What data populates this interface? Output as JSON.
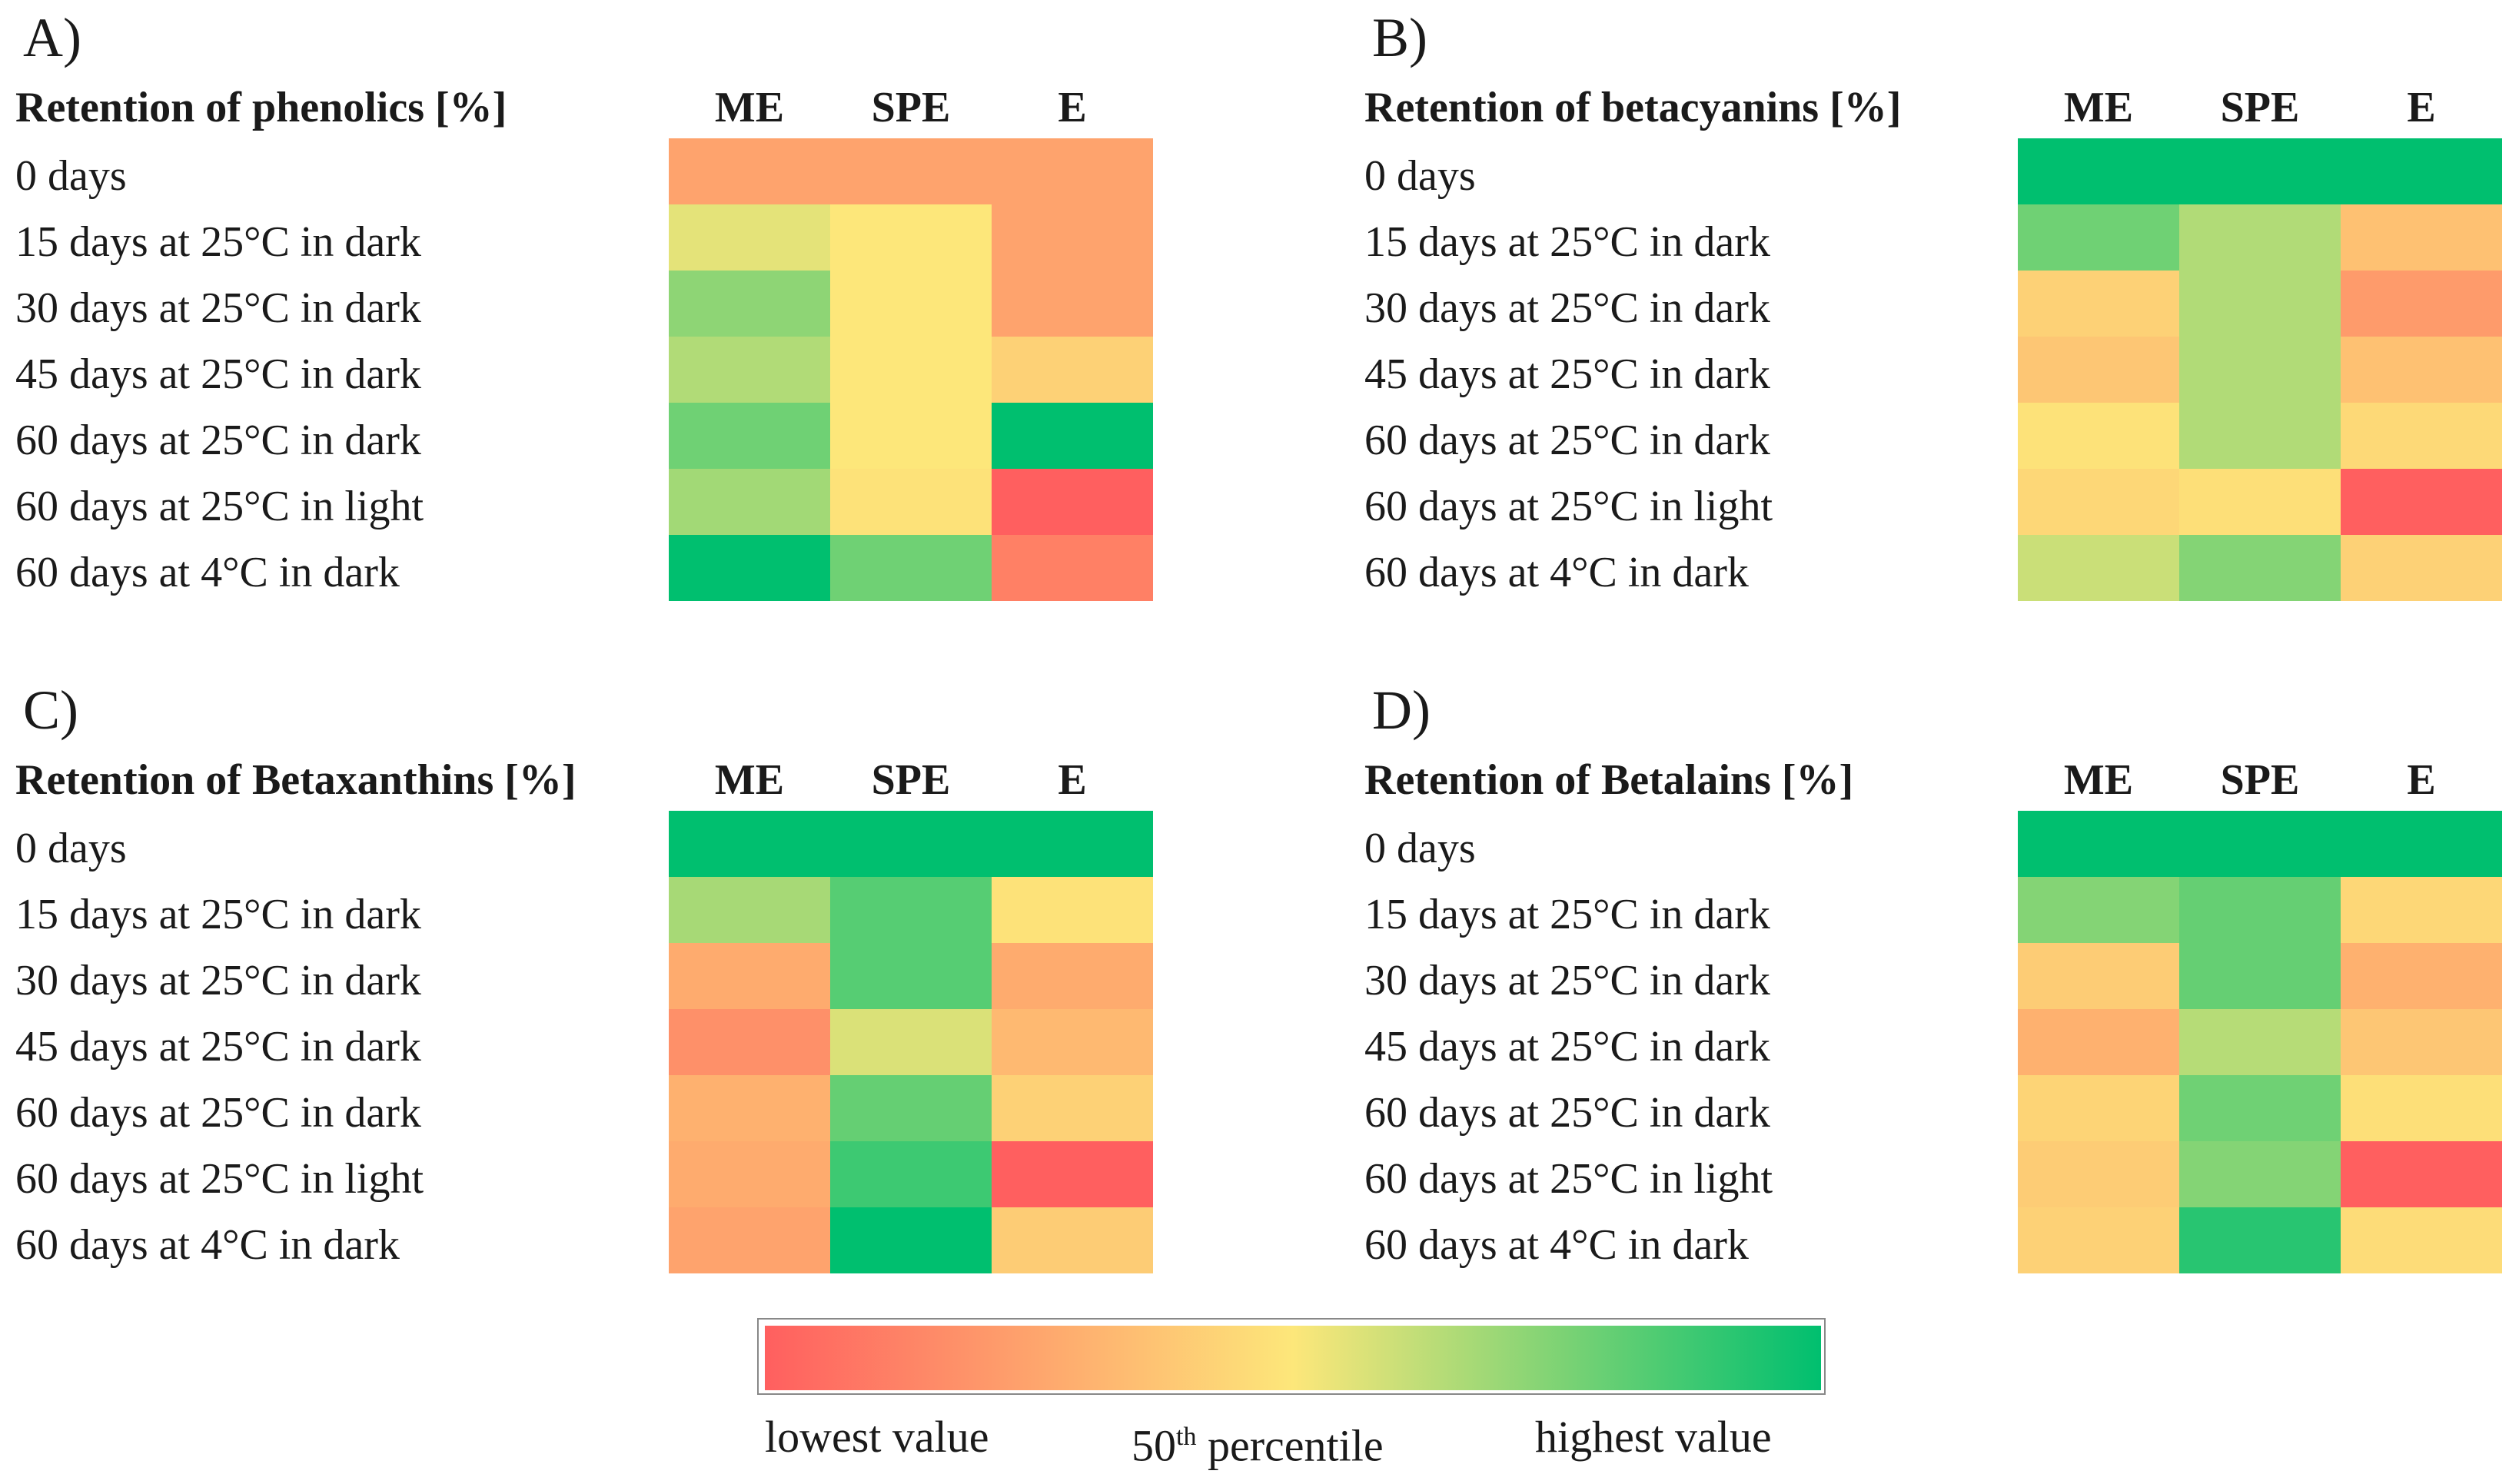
{
  "colors": {
    "low": "#ff5f5f",
    "mid": "#fde77a",
    "high": "#00bf6f"
  },
  "columns": [
    "ME",
    "SPE",
    "E"
  ],
  "row_labels": [
    "0 days",
    "15 days at 25°C in dark",
    "30 days at 25°C in dark",
    "45 days at 25°C in dark",
    "60 days at 25°C in dark",
    "60 days at 25°C in light",
    "60 days at 4°C in dark"
  ],
  "legend": {
    "low_label": "lowest value",
    "mid_label_base": "50",
    "mid_label_sup": "th",
    "mid_label_rest": " percentile",
    "high_label": "highest value"
  },
  "chart_data": [
    {
      "type": "heatmap",
      "panel": "A)",
      "title": "Retention of phenolics [%]",
      "columns": [
        "ME",
        "SPE",
        "E"
      ],
      "rows": [
        "0 days",
        "15 days at 25°C in dark",
        "30 days at 25°C in dark",
        "45 days at 25°C in dark",
        "60 days at 25°C in dark",
        "60 days at 25°C in light",
        "60 days at 4°C in dark"
      ],
      "scale": "relative color (0 = lowest value, 0.5 = 50th percentile, 1 = highest value)",
      "values": [
        [
          0.25,
          0.25,
          0.25
        ],
        [
          0.55,
          0.5,
          0.25
        ],
        [
          0.72,
          0.5,
          0.25
        ],
        [
          0.65,
          0.5,
          0.42
        ],
        [
          0.78,
          0.5,
          1.0
        ],
        [
          0.68,
          0.48,
          0.0
        ],
        [
          1.0,
          0.78,
          0.12
        ]
      ]
    },
    {
      "type": "heatmap",
      "panel": "B)",
      "title": "Retention of betacyanins [%]",
      "columns": [
        "ME",
        "SPE",
        "E"
      ],
      "rows": [
        "0 days",
        "15 days at 25°C in dark",
        "30 days at 25°C in dark",
        "45 days at 25°C in dark",
        "60 days at 25°C in dark",
        "60 days at 25°C in light",
        "60 days at 4°C in dark"
      ],
      "scale": "relative color (0 = lowest value, 0.5 = 50th percentile, 1 = highest value)",
      "values": [
        [
          1.0,
          1.0,
          1.0
        ],
        [
          0.78,
          0.65,
          0.36
        ],
        [
          0.42,
          0.65,
          0.22
        ],
        [
          0.38,
          0.65,
          0.36
        ],
        [
          0.48,
          0.65,
          0.45
        ],
        [
          0.44,
          0.47,
          0.0
        ],
        [
          0.6,
          0.74,
          0.42
        ]
      ]
    },
    {
      "type": "heatmap",
      "panel": "C)",
      "title": "Retention of Betaxanthins [%]",
      "columns": [
        "ME",
        "SPE",
        "E"
      ],
      "rows": [
        "0 days",
        "15 days at 25°C in dark",
        "30 days at 25°C in dark",
        "45 days at 25°C in dark",
        "60 days at 25°C in dark",
        "60 days at 25°C in light",
        "60 days at 4°C in dark"
      ],
      "scale": "relative color (0 = lowest value, 0.5 = 50th percentile, 1 = highest value)",
      "values": [
        [
          1.0,
          1.0,
          1.0
        ],
        [
          0.67,
          0.83,
          0.48
        ],
        [
          0.28,
          0.83,
          0.28
        ],
        [
          0.18,
          0.57,
          0.33
        ],
        [
          0.3,
          0.8,
          0.42
        ],
        [
          0.28,
          0.88,
          0.0
        ],
        [
          0.25,
          1.0,
          0.4
        ]
      ]
    },
    {
      "type": "heatmap",
      "panel": "D)",
      "title": "Retention of Betalains [%]",
      "columns": [
        "ME",
        "SPE",
        "E"
      ],
      "rows": [
        "0 days",
        "15 days at 25°C in dark",
        "30 days at 25°C in dark",
        "45 days at 25°C in dark",
        "60 days at 25°C in dark",
        "60 days at 25°C in light",
        "60 days at 4°C in dark"
      ],
      "scale": "relative color (0 = lowest value, 0.5 = 50th percentile, 1 = highest value)",
      "values": [
        [
          1.0,
          1.0,
          1.0
        ],
        [
          0.74,
          0.8,
          0.44
        ],
        [
          0.4,
          0.8,
          0.3
        ],
        [
          0.3,
          0.64,
          0.38
        ],
        [
          0.43,
          0.78,
          0.47
        ],
        [
          0.4,
          0.74,
          0.0
        ],
        [
          0.42,
          0.92,
          0.46
        ]
      ]
    }
  ]
}
